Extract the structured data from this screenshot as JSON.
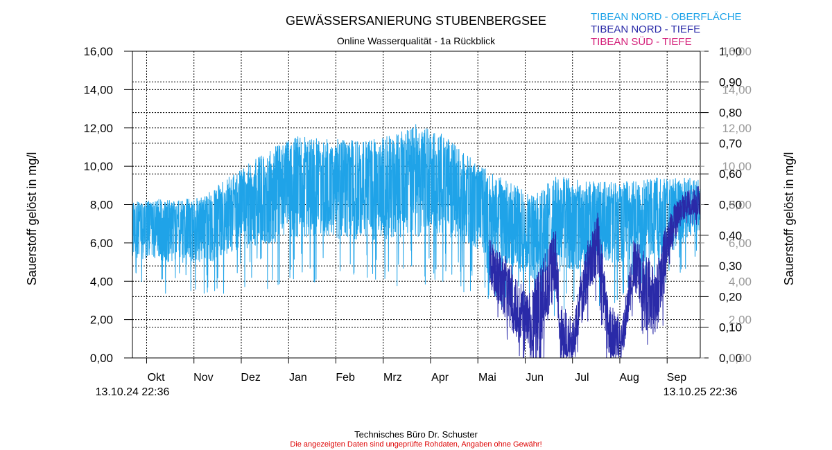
{
  "chart_data": {
    "type": "line",
    "title": "GEWÄSSERSANIERUNG STUBENBERGSEE",
    "subtitle": "Online Wasserqualität - 1a Rückblick",
    "ylabel_left": "Sauerstoff gelöst in mg/l",
    "ylabel_right": "Sauerstoff gelöst in mg/l",
    "ylim": [
      0,
      16
    ],
    "y_ticks": [
      "0,00",
      "2,00",
      "4,00",
      "6,00",
      "8,00",
      "10,00",
      "12,00",
      "14,00",
      "16,00"
    ],
    "y2_ticks": [
      "0,00",
      "0,10",
      "0,20",
      "0,30",
      "0,40",
      "0,50",
      "0,60",
      "0,70",
      "0,80",
      "0,90",
      "1,00"
    ],
    "y3_ticks": [
      "0,00",
      "2,00",
      "4,00",
      "6,00",
      "8,00",
      "10,00",
      "12,00",
      "14,00",
      "16,00"
    ],
    "x_months": [
      "Okt",
      "Nov",
      "Dez",
      "Jan",
      "Feb",
      "Mrz",
      "Apr",
      "Mai",
      "Jun",
      "Jul",
      "Aug",
      "Sep"
    ],
    "x_start_label": "13.10.24 22:36",
    "x_end_label": "13.10.25 22:36",
    "legend": [
      {
        "name": "TIBEAN NORD - OBERFLÄCHE",
        "color": "#1fa3e8"
      },
      {
        "name": "TIBEAN NORD - TIEFE",
        "color": "#2a2aa8"
      },
      {
        "name": "TIBEAN SÜD    - TIEFE",
        "color": "#d4207a"
      }
    ],
    "series": [
      {
        "name": "TIBEAN NORD - OBERFLÄCHE",
        "color": "#1fa3e8",
        "x_months": [
          0,
          0.5,
          1.0,
          1.5,
          2.0,
          2.5,
          3.0,
          3.5,
          4.0,
          4.5,
          5.0,
          5.5,
          6.0,
          6.5,
          7.0,
          7.5,
          8.0,
          8.5,
          9.0,
          9.5,
          10.0,
          10.5,
          11.0,
          11.5,
          12.0
        ],
        "mean": [
          7.2,
          7.3,
          7.2,
          7.3,
          8.0,
          8.6,
          9.0,
          9.6,
          9.6,
          9.5,
          9.4,
          9.5,
          9.6,
          9.8,
          9.3,
          8.4,
          7.8,
          7.0,
          7.3,
          7.4,
          7.6,
          7.7,
          7.6,
          7.9,
          8.1
        ],
        "amp_low": [
          2.0,
          2.2,
          2.3,
          2.5,
          2.6,
          2.8,
          3.0,
          3.3,
          3.3,
          3.3,
          3.3,
          3.3,
          3.3,
          3.3,
          3.3,
          3.0,
          3.0,
          3.0,
          2.8,
          2.8,
          2.7,
          2.6,
          2.6,
          2.2,
          1.4
        ],
        "amp_high": [
          1.0,
          1.0,
          1.1,
          1.1,
          1.4,
          1.6,
          2.0,
          2.0,
          1.8,
          1.9,
          2.0,
          2.2,
          2.6,
          2.0,
          1.4,
          1.4,
          1.3,
          1.6,
          2.3,
          1.8,
          1.6,
          1.5,
          1.8,
          1.5,
          1.3
        ]
      },
      {
        "name": "TIBEAN NORD - TIEFE",
        "color": "#2a2aa8",
        "x_months": [
          7.55,
          8.0,
          8.35,
          8.6,
          8.95,
          9.05,
          9.3,
          9.6,
          9.85,
          10.05,
          10.35,
          10.6,
          10.85,
          11.05,
          11.25,
          11.5,
          11.75,
          12.0
        ],
        "mean": [
          5.2,
          3.5,
          1.8,
          2.8,
          5.5,
          1.5,
          0.5,
          4.5,
          6.5,
          1.5,
          0.5,
          5.0,
          4.0,
          3.0,
          5.5,
          7.4,
          8.0,
          8.3
        ],
        "amp_low": [
          1.5,
          2.0,
          1.8,
          2.4,
          2.0,
          1.5,
          0.5,
          1.8,
          2.0,
          1.5,
          0.5,
          1.5,
          2.0,
          2.0,
          2.0,
          0.5,
          0.6,
          0.8
        ],
        "amp_high": [
          1.0,
          1.5,
          1.8,
          1.8,
          1.5,
          1.5,
          1.5,
          1.5,
          1.3,
          1.5,
          1.5,
          1.3,
          1.5,
          1.5,
          1.3,
          0.9,
          0.8,
          0.8
        ]
      }
    ]
  },
  "footer": {
    "company": "Technisches Büro Dr. Schuster",
    "disclaimer": "Die angezeigten Daten sind ungeprüfte Rohdaten, Angaben ohne Gewähr!"
  }
}
